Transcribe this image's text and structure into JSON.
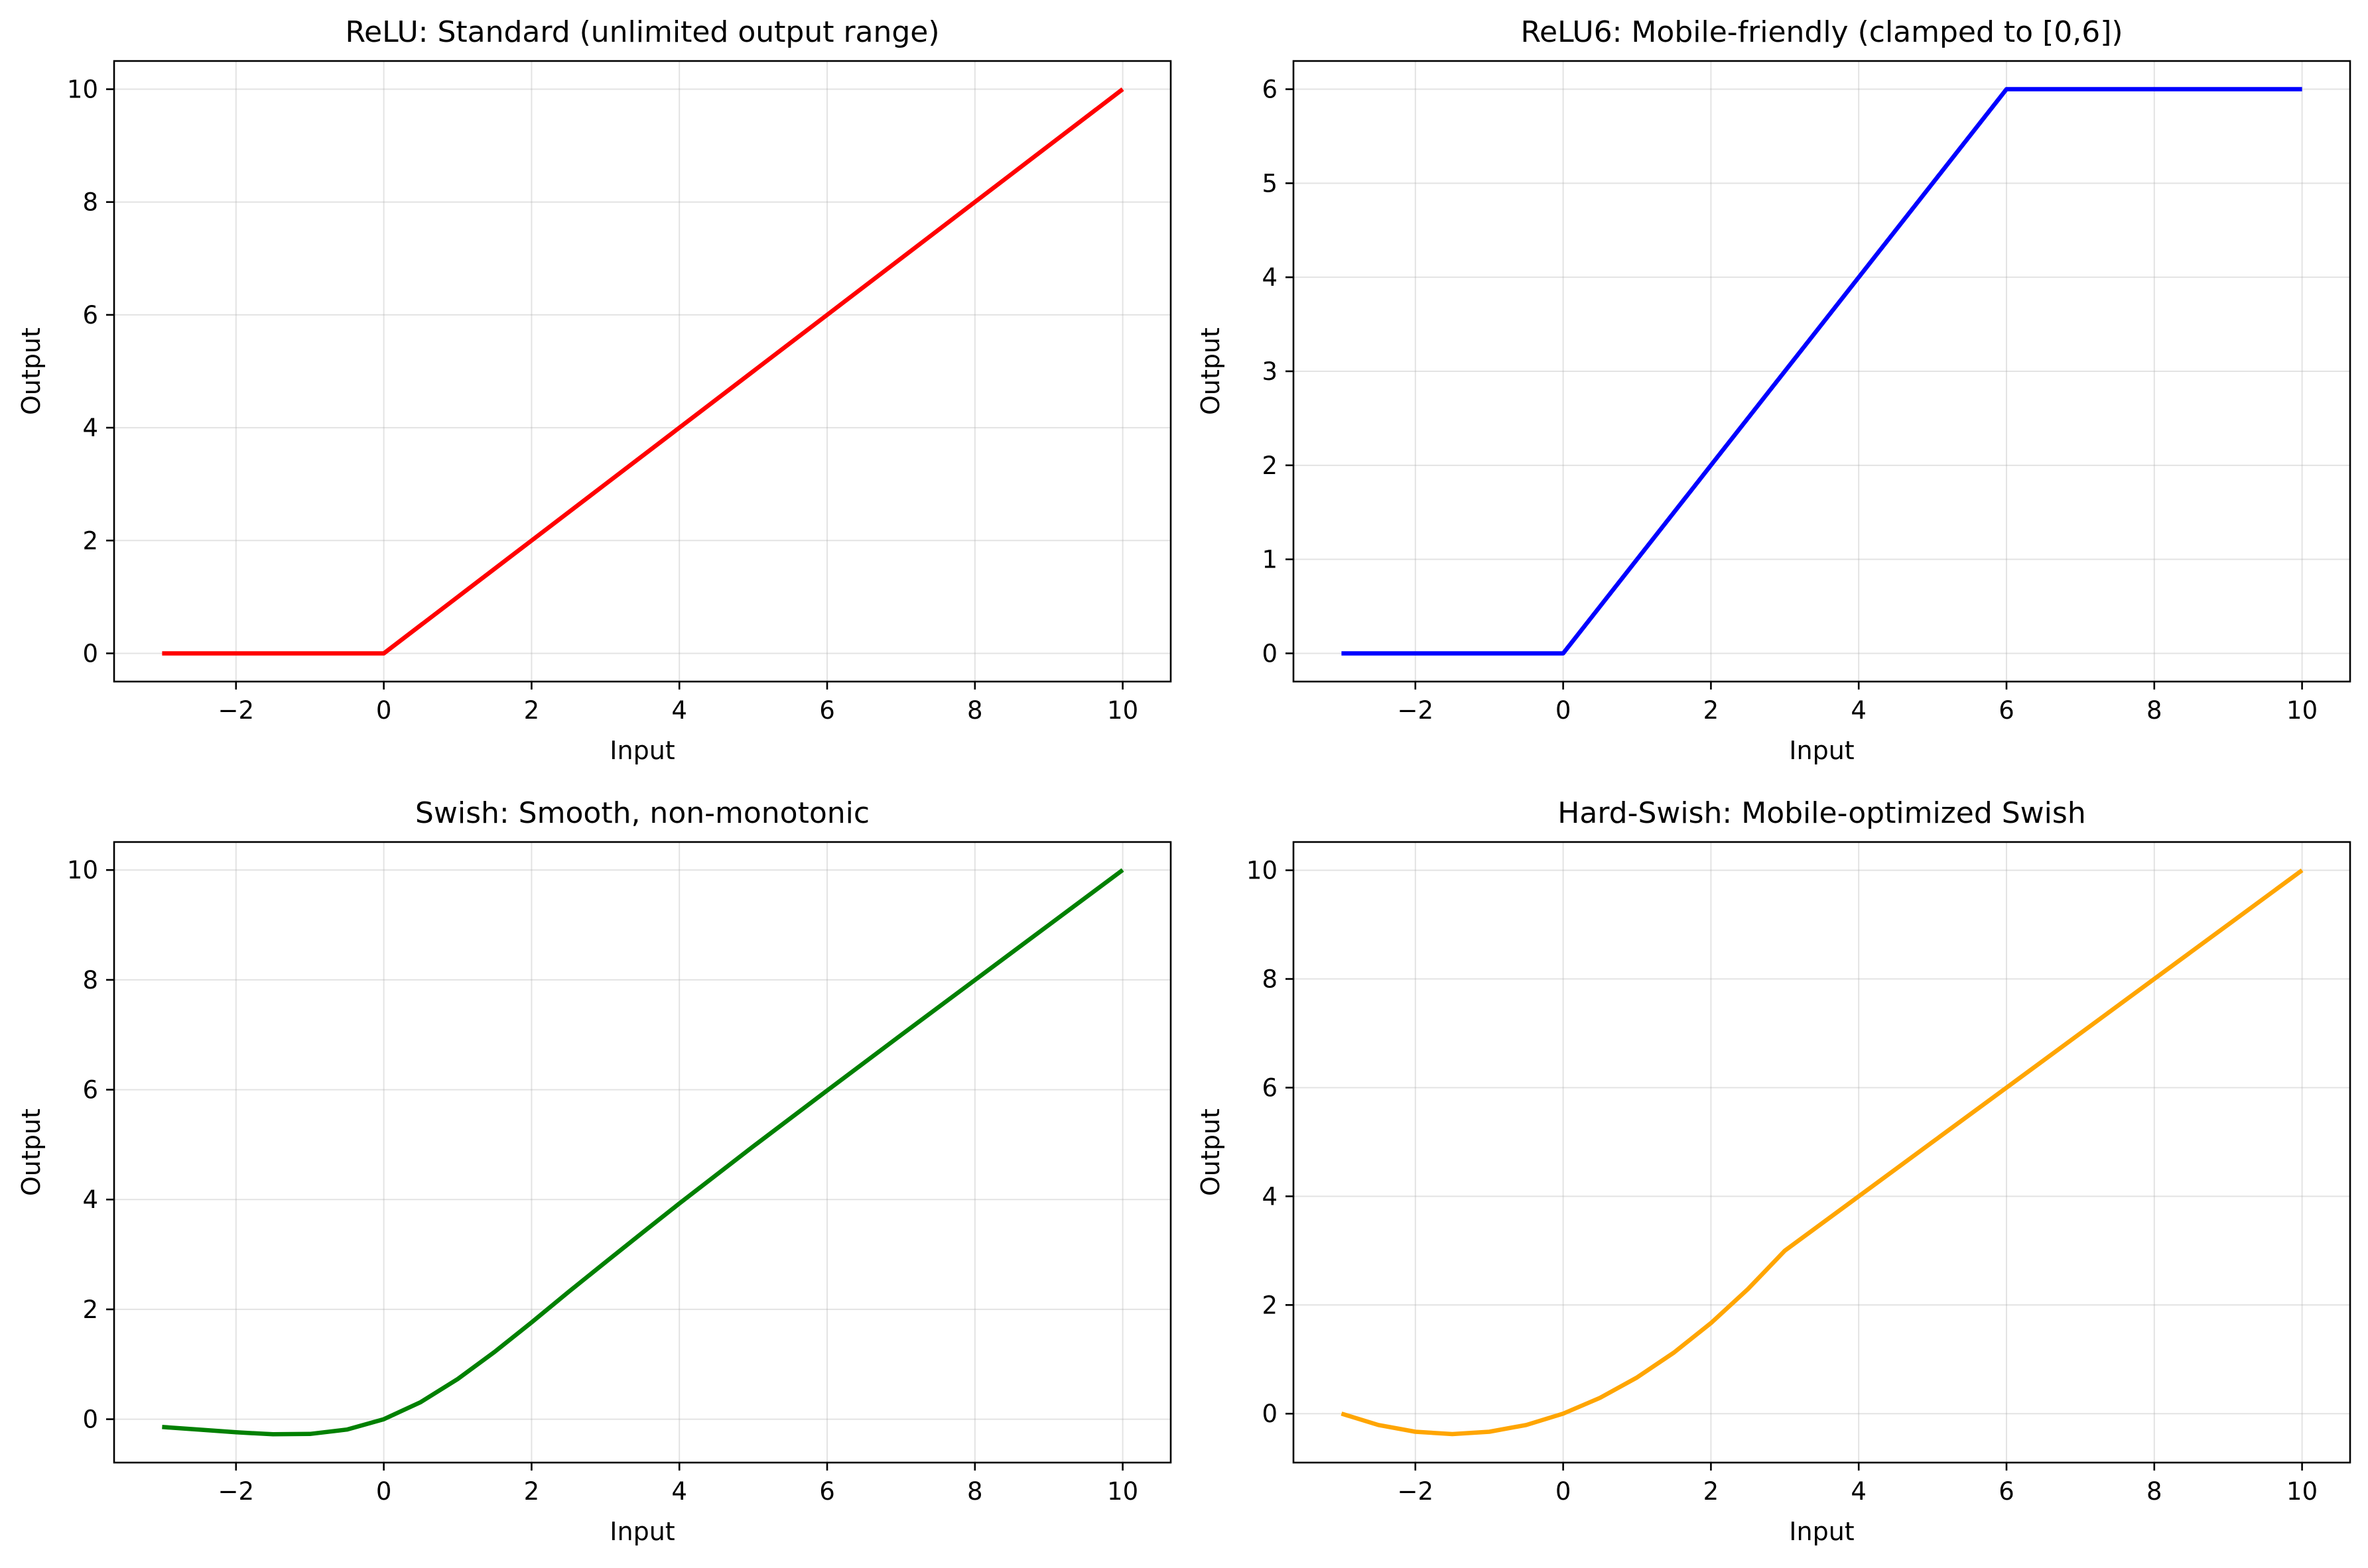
{
  "chart_data": [
    {
      "type": "line",
      "title": "ReLU: Standard (unlimited output range)",
      "xlabel": "Input",
      "ylabel": "Output",
      "xlim": [
        -3.65,
        10.65
      ],
      "ylim": [
        -0.5,
        10.5
      ],
      "xticks": [
        -2,
        0,
        2,
        4,
        6,
        8,
        10
      ],
      "yticks": [
        0,
        2,
        4,
        6,
        8,
        10
      ],
      "xtick_labels": [
        "−2",
        "0",
        "2",
        "4",
        "6",
        "8",
        "10"
      ],
      "ytick_labels": [
        "0",
        "2",
        "4",
        "6",
        "8",
        "10"
      ],
      "grid": true,
      "color": "#ff0000",
      "series": [
        {
          "x": [
            -3,
            -2,
            -1,
            0,
            1,
            2,
            3,
            4,
            5,
            6,
            7,
            8,
            9,
            10
          ],
          "y": [
            0,
            0,
            0,
            0,
            1,
            2,
            3,
            4,
            5,
            6,
            7,
            8,
            9,
            10
          ]
        }
      ]
    },
    {
      "type": "line",
      "title": "ReLU6: Mobile-friendly (clamped to [0,6])",
      "xlabel": "Input",
      "ylabel": "Output",
      "xlim": [
        -3.65,
        10.65
      ],
      "ylim": [
        -0.3,
        6.3
      ],
      "xticks": [
        -2,
        0,
        2,
        4,
        6,
        8,
        10
      ],
      "yticks": [
        0,
        1,
        2,
        3,
        4,
        5,
        6
      ],
      "xtick_labels": [
        "−2",
        "0",
        "2",
        "4",
        "6",
        "8",
        "10"
      ],
      "ytick_labels": [
        "0",
        "1",
        "2",
        "3",
        "4",
        "5",
        "6"
      ],
      "grid": true,
      "color": "#0000ff",
      "series": [
        {
          "x": [
            -3,
            -2,
            -1,
            0,
            1,
            2,
            3,
            4,
            5,
            6,
            7,
            8,
            9,
            10
          ],
          "y": [
            0,
            0,
            0,
            0,
            1,
            2,
            3,
            4,
            5,
            6,
            6,
            6,
            6,
            6
          ]
        }
      ]
    },
    {
      "type": "line",
      "title": "Swish: Smooth, non-monotonic",
      "xlabel": "Input",
      "ylabel": "Output",
      "xlim": [
        -3.65,
        10.65
      ],
      "ylim": [
        -0.79,
        10.51
      ],
      "xticks": [
        -2,
        0,
        2,
        4,
        6,
        8,
        10
      ],
      "yticks": [
        0,
        2,
        4,
        6,
        8,
        10
      ],
      "xtick_labels": [
        "−2",
        "0",
        "2",
        "4",
        "6",
        "8",
        "10"
      ],
      "ytick_labels": [
        "0",
        "2",
        "4",
        "6",
        "8",
        "10"
      ],
      "grid": true,
      "color": "#008000",
      "series": [
        {
          "x": [
            -3,
            -2.5,
            -2,
            -1.5,
            -1,
            -0.5,
            0,
            0.5,
            1,
            1.5,
            2,
            2.5,
            3,
            3.5,
            4,
            5,
            6,
            7,
            8,
            9,
            10
          ],
          "y": [
            -0.142,
            -0.19,
            -0.238,
            -0.274,
            -0.269,
            -0.189,
            0,
            0.311,
            0.731,
            1.226,
            1.762,
            2.317,
            2.858,
            3.395,
            3.928,
            4.967,
            5.985,
            6.994,
            7.997,
            8.999,
            10.0
          ]
        }
      ]
    },
    {
      "type": "line",
      "title": "Hard-Swish: Mobile-optimized Swish",
      "xlabel": "Input",
      "ylabel": "Output",
      "xlim": [
        -3.65,
        10.65
      ],
      "ylim": [
        -0.9,
        10.52
      ],
      "xticks": [
        -2,
        0,
        2,
        4,
        6,
        8,
        10
      ],
      "yticks": [
        0,
        2,
        4,
        6,
        8,
        10
      ],
      "xtick_labels": [
        "−2",
        "0",
        "2",
        "4",
        "6",
        "8",
        "10"
      ],
      "ytick_labels": [
        "0",
        "2",
        "4",
        "6",
        "8",
        "10"
      ],
      "grid": true,
      "color": "#ffa500",
      "series": [
        {
          "x": [
            -3,
            -2.5,
            -2,
            -1.5,
            -1,
            -0.5,
            0,
            0.5,
            1,
            1.5,
            2,
            2.5,
            3,
            4,
            5,
            6,
            7,
            8,
            9,
            10
          ],
          "y": [
            0,
            -0.208,
            -0.333,
            -0.375,
            -0.333,
            -0.208,
            0,
            0.292,
            0.667,
            1.125,
            1.667,
            2.292,
            3.0,
            4.0,
            5.0,
            6.0,
            7.0,
            8.0,
            9.0,
            10.0
          ]
        }
      ]
    }
  ]
}
